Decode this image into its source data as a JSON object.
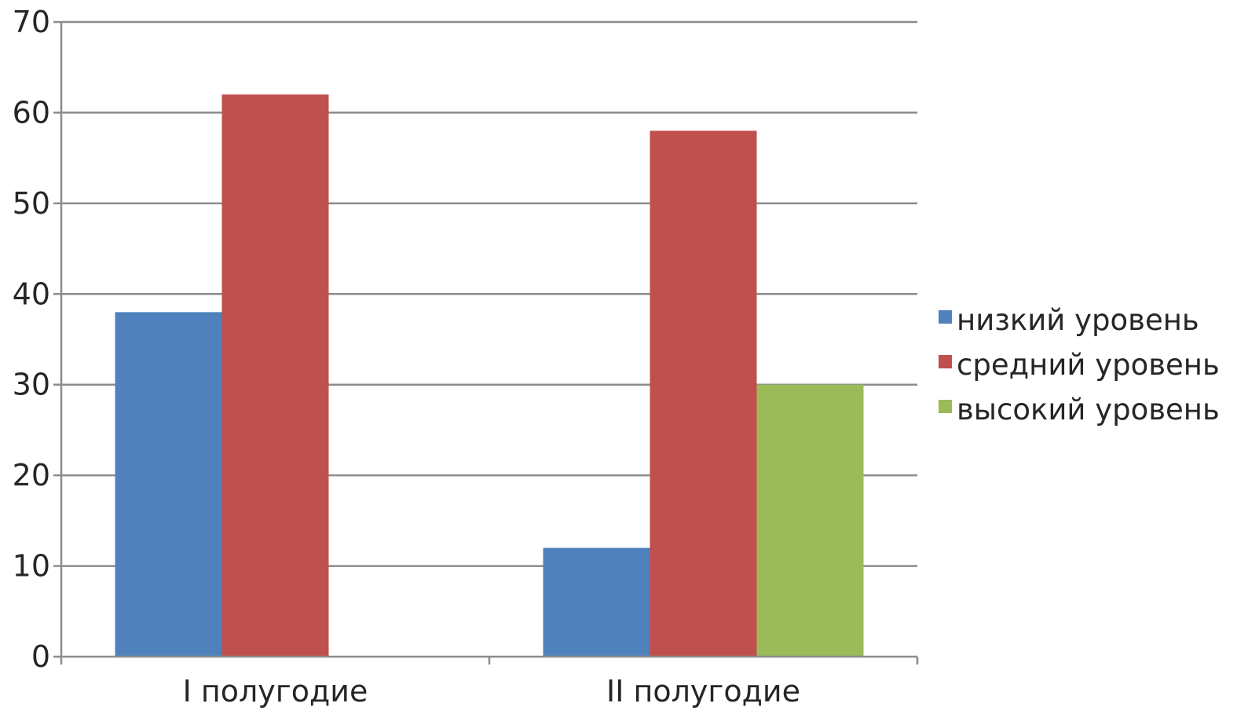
{
  "chart_data": {
    "type": "bar",
    "categories": [
      "I полугодие",
      "II полугодие"
    ],
    "series": [
      {
        "name": "низкий уровень",
        "values": [
          38,
          12
        ],
        "color": "#4f81bd"
      },
      {
        "name": "средний уровень",
        "values": [
          62,
          58
        ],
        "color": "#c0504d"
      },
      {
        "name": "высокий уровень",
        "values": [
          0,
          30
        ],
        "color": "#9bbb59"
      }
    ],
    "yticks": [
      0,
      10,
      20,
      30,
      40,
      50,
      60,
      70
    ],
    "ylim": [
      0,
      70
    ],
    "grid": true,
    "legend": "right"
  }
}
